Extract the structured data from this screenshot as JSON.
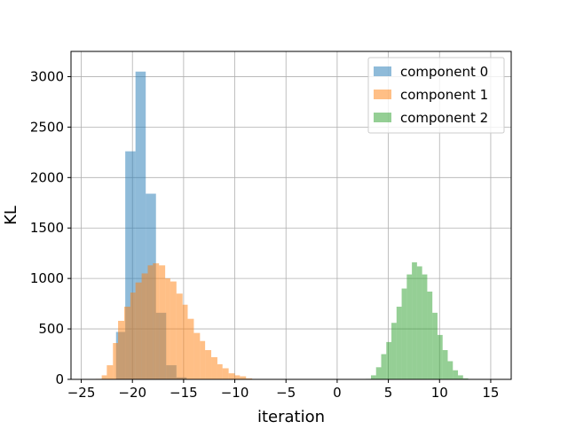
{
  "chart_data": {
    "type": "histogram",
    "title": "",
    "xlabel": "iteration",
    "ylabel": "KL",
    "xlim": [
      -26,
      17
    ],
    "ylim": [
      0,
      3250
    ],
    "xticks": [
      -25,
      -20,
      -15,
      -10,
      -5,
      0,
      5,
      10,
      15
    ],
    "xtick_labels": [
      "−25",
      "−20",
      "−15",
      "−10",
      "−5",
      "0",
      "5",
      "10",
      "15"
    ],
    "yticks": [
      0,
      500,
      1000,
      1500,
      2000,
      2500,
      3000
    ],
    "ytick_labels": [
      "0",
      "500",
      "1000",
      "1500",
      "2000",
      "2500",
      "3000"
    ],
    "grid": true,
    "legend": "top-right",
    "bar_alpha": 0.5,
    "series": [
      {
        "name": "component 0",
        "color": "#1f77b4",
        "bins": [
          [
            -21.6,
            -20.7,
            470
          ],
          [
            -20.7,
            -19.7,
            2260
          ],
          [
            -19.7,
            -18.7,
            3050
          ],
          [
            -18.7,
            -17.7,
            1840
          ],
          [
            -17.7,
            -16.7,
            660
          ],
          [
            -16.7,
            -15.7,
            140
          ],
          [
            -15.7,
            -14.7,
            20
          ]
        ]
      },
      {
        "name": "component 1",
        "color": "#ff7f0e",
        "bins": [
          [
            -23.6,
            -23.0,
            5
          ],
          [
            -23.0,
            -22.5,
            40
          ],
          [
            -22.5,
            -21.9,
            140
          ],
          [
            -21.9,
            -21.4,
            360
          ],
          [
            -21.4,
            -20.8,
            580
          ],
          [
            -20.8,
            -20.2,
            720
          ],
          [
            -20.2,
            -19.7,
            860
          ],
          [
            -19.7,
            -19.1,
            960
          ],
          [
            -19.1,
            -18.5,
            1050
          ],
          [
            -18.5,
            -18.0,
            1130
          ],
          [
            -18.0,
            -17.4,
            1150
          ],
          [
            -17.4,
            -16.8,
            1130
          ],
          [
            -16.8,
            -16.3,
            1000
          ],
          [
            -16.3,
            -15.7,
            970
          ],
          [
            -15.7,
            -15.1,
            850
          ],
          [
            -15.1,
            -14.6,
            740
          ],
          [
            -14.6,
            -14.0,
            600
          ],
          [
            -14.0,
            -13.4,
            460
          ],
          [
            -13.4,
            -12.9,
            380
          ],
          [
            -12.9,
            -12.3,
            290
          ],
          [
            -12.3,
            -11.7,
            220
          ],
          [
            -11.7,
            -11.2,
            150
          ],
          [
            -11.2,
            -10.6,
            110
          ],
          [
            -10.6,
            -10.0,
            60
          ],
          [
            -10.0,
            -9.5,
            40
          ],
          [
            -9.5,
            -8.9,
            30
          ],
          [
            -8.9,
            -8.3,
            10
          ]
        ]
      },
      {
        "name": "component 2",
        "color": "#2ca02c",
        "bins": [
          [
            2.8,
            3.3,
            5
          ],
          [
            3.3,
            3.8,
            40
          ],
          [
            3.8,
            4.3,
            120
          ],
          [
            4.3,
            4.8,
            250
          ],
          [
            4.8,
            5.3,
            370
          ],
          [
            5.3,
            5.8,
            560
          ],
          [
            5.8,
            6.3,
            720
          ],
          [
            6.3,
            6.8,
            900
          ],
          [
            6.8,
            7.3,
            1040
          ],
          [
            7.3,
            7.8,
            1160
          ],
          [
            7.8,
            8.3,
            1120
          ],
          [
            8.3,
            8.8,
            1040
          ],
          [
            8.8,
            9.3,
            870
          ],
          [
            9.3,
            9.8,
            660
          ],
          [
            9.8,
            10.3,
            440
          ],
          [
            10.3,
            10.8,
            290
          ],
          [
            10.8,
            11.3,
            180
          ],
          [
            11.3,
            11.8,
            90
          ],
          [
            11.8,
            12.3,
            40
          ],
          [
            12.3,
            12.8,
            10
          ]
        ]
      }
    ]
  }
}
